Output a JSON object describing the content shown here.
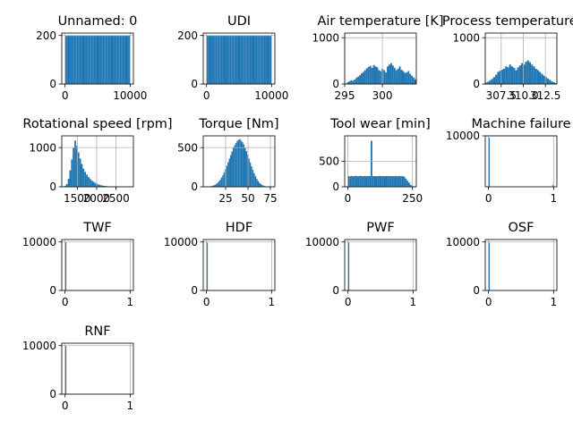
{
  "chart_data": [
    {
      "type": "histogram",
      "title": "Unnamed: 0",
      "distribution": "uniform",
      "bins": 50,
      "xlim": [
        -500,
        10500
      ],
      "ylim": [
        0,
        210
      ],
      "xticks": [
        {
          "v": 0,
          "label": "0"
        },
        {
          "v": 10000,
          "label": "10000"
        }
      ],
      "yticks": [
        {
          "v": 0,
          "label": "0"
        },
        {
          "v": 200,
          "label": "200"
        }
      ],
      "values": [
        200,
        200,
        200,
        200,
        200,
        200,
        200,
        200,
        200,
        200,
        200,
        200,
        200,
        200,
        200,
        200,
        200,
        200,
        200,
        200,
        200,
        200,
        200,
        200,
        200,
        200,
        200,
        200,
        200,
        200,
        200,
        200,
        200,
        200,
        200,
        200,
        200,
        200,
        200,
        200,
        200,
        200,
        200,
        200,
        200,
        200,
        200,
        200,
        200,
        200
      ],
      "range": [
        0,
        10000
      ]
    },
    {
      "type": "histogram",
      "title": "UDI",
      "distribution": "uniform",
      "bins": 50,
      "xlim": [
        -500,
        10500
      ],
      "ylim": [
        0,
        210
      ],
      "xticks": [
        {
          "v": 0,
          "label": "0"
        },
        {
          "v": 10000,
          "label": "10000"
        }
      ],
      "yticks": [
        {
          "v": 0,
          "label": "0"
        },
        {
          "v": 200,
          "label": "200"
        }
      ],
      "values": [
        200,
        200,
        200,
        200,
        200,
        200,
        200,
        200,
        200,
        200,
        200,
        200,
        200,
        200,
        200,
        200,
        200,
        200,
        200,
        200,
        200,
        200,
        200,
        200,
        200,
        200,
        200,
        200,
        200,
        200,
        200,
        200,
        200,
        200,
        200,
        200,
        200,
        200,
        200,
        200,
        200,
        200,
        200,
        200,
        200,
        200,
        200,
        200,
        200,
        200
      ],
      "range": [
        1,
        10000
      ]
    },
    {
      "type": "histogram",
      "title": "Air temperature [K]",
      "distribution": "multimodal",
      "xlim": [
        295,
        304.5
      ],
      "ylim": [
        0,
        1100
      ],
      "xticks": [
        {
          "v": 295,
          "label": "295"
        },
        {
          "v": 300,
          "label": "300"
        }
      ],
      "yticks": [
        {
          "v": 0,
          "label": "0"
        },
        {
          "v": 1000,
          "label": "1000"
        }
      ],
      "values": [
        40,
        60,
        80,
        70,
        100,
        130,
        160,
        190,
        230,
        260,
        300,
        340,
        370,
        390,
        350,
        410,
        380,
        360,
        300,
        280,
        330,
        300,
        250,
        380,
        420,
        450,
        400,
        350,
        300,
        330,
        380,
        310,
        280,
        240,
        250,
        280,
        220,
        180,
        140,
        100
      ],
      "range": [
        295.3,
        304.5
      ]
    },
    {
      "type": "histogram",
      "title": "Process temperature [K]",
      "distribution": "multimodal",
      "xlim": [
        305.7,
        313.8
      ],
      "ylim": [
        0,
        1100
      ],
      "xticks": [
        {
          "v": 307.5,
          "label": "307.5"
        },
        {
          "v": 310,
          "label": "310.0"
        },
        {
          "v": 312.5,
          "label": "312.5"
        }
      ],
      "yticks": [
        {
          "v": 0,
          "label": "0"
        },
        {
          "v": 1000,
          "label": "1000"
        }
      ],
      "values": [
        30,
        50,
        80,
        110,
        150,
        200,
        260,
        290,
        310,
        330,
        380,
        360,
        420,
        380,
        350,
        300,
        360,
        400,
        450,
        420,
        480,
        510,
        470,
        420,
        380,
        330,
        300,
        260,
        220,
        180,
        150,
        120,
        90,
        60,
        40,
        20
      ],
      "range": [
        305.7,
        313.8
      ]
    },
    {
      "type": "histogram",
      "title": "Rotational speed [rpm]",
      "distribution": "right-skewed",
      "xlim": [
        1100,
        2950
      ],
      "ylim": [
        0,
        1300
      ],
      "xticks": [
        {
          "v": 1500,
          "label": "1500"
        },
        {
          "v": 2000,
          "label": "2000"
        },
        {
          "v": 2500,
          "label": "2500"
        }
      ],
      "yticks": [
        {
          "v": 0,
          "label": "0"
        },
        {
          "v": 1000,
          "label": "1000"
        }
      ],
      "values": [
        20,
        70,
        200,
        420,
        700,
        1000,
        1180,
        1050,
        880,
        720,
        580,
        460,
        380,
        310,
        250,
        200,
        160,
        130,
        100,
        80,
        60,
        45,
        35,
        25,
        20,
        15,
        12,
        10,
        8,
        6,
        5,
        4,
        3,
        2,
        2,
        1,
        1,
        1,
        1,
        1
      ],
      "range": [
        1168,
        2886
      ]
    },
    {
      "type": "histogram",
      "title": "Torque [Nm]",
      "distribution": "normal",
      "xlim": [
        0,
        80
      ],
      "ylim": [
        0,
        650
      ],
      "xticks": [
        {
          "v": 25,
          "label": "25"
        },
        {
          "v": 50,
          "label": "50"
        },
        {
          "v": 75,
          "label": "75"
        }
      ],
      "yticks": [
        {
          "v": 0,
          "label": "0"
        },
        {
          "v": 500,
          "label": "500"
        }
      ],
      "values": [
        2,
        3,
        5,
        8,
        12,
        18,
        26,
        38,
        52,
        70,
        92,
        118,
        150,
        185,
        225,
        268,
        312,
        360,
        405,
        450,
        495,
        530,
        560,
        585,
        600,
        610,
        590,
        570,
        540,
        500,
        455,
        410,
        360,
        310,
        260,
        215,
        172,
        135,
        102,
        75,
        52,
        36,
        24,
        15,
        9,
        5,
        3,
        2,
        1,
        1
      ],
      "range": [
        3.8,
        76.6
      ]
    },
    {
      "type": "histogram",
      "title": "Tool wear [min]",
      "distribution": "uniform-with-spike",
      "xlim": [
        -12,
        265
      ],
      "ylim": [
        0,
        1000
      ],
      "xticks": [
        {
          "v": 0,
          "label": "0"
        },
        {
          "v": 250,
          "label": "250"
        }
      ],
      "yticks": [
        {
          "v": 0,
          "label": "0"
        },
        {
          "v": 500,
          "label": "500"
        }
      ],
      "values": [
        210,
        205,
        212,
        208,
        215,
        210,
        206,
        214,
        211,
        209,
        212,
        207,
        213,
        210,
        900,
        208,
        212,
        206,
        211,
        214,
        209,
        212,
        207,
        210,
        213,
        208,
        211,
        210,
        206,
        212,
        209,
        214,
        207,
        211,
        200,
        160,
        120,
        80,
        40,
        15
      ],
      "range": [
        0,
        253
      ]
    },
    {
      "type": "histogram",
      "title": "Machine failure",
      "distribution": "binary",
      "xlim": [
        -0.05,
        1.05
      ],
      "ylim": [
        0,
        10000
      ],
      "xticks": [
        {
          "v": 0,
          "label": "0"
        },
        {
          "v": 1,
          "label": "1"
        }
      ],
      "yticks": [
        {
          "v": 10000,
          "label": "10000"
        }
      ],
      "values": [
        9661,
        0,
        0,
        0,
        0,
        0,
        0,
        0,
        0,
        0,
        0,
        0,
        0,
        0,
        0,
        0,
        0,
        0,
        0,
        0,
        0,
        0,
        0,
        0,
        0,
        0,
        0,
        0,
        0,
        0,
        0,
        0,
        0,
        0,
        0,
        0,
        0,
        0,
        0,
        0,
        0,
        0,
        0,
        0,
        0,
        0,
        0,
        0,
        0,
        339
      ],
      "range": [
        0,
        1
      ]
    },
    {
      "type": "histogram",
      "title": "TWF",
      "distribution": "binary",
      "xlim": [
        -0.05,
        1.05
      ],
      "ylim": [
        0,
        10500
      ],
      "xticks": [
        {
          "v": 0,
          "label": "0"
        },
        {
          "v": 1,
          "label": "1"
        }
      ],
      "yticks": [
        {
          "v": 0,
          "label": "0"
        },
        {
          "v": 10000,
          "label": "10000"
        }
      ],
      "values": [
        9954,
        0,
        0,
        0,
        0,
        0,
        0,
        0,
        0,
        0,
        0,
        0,
        0,
        0,
        0,
        0,
        0,
        0,
        0,
        0,
        0,
        0,
        0,
        0,
        0,
        0,
        0,
        0,
        0,
        0,
        0,
        0,
        0,
        0,
        0,
        0,
        0,
        0,
        0,
        0,
        0,
        0,
        0,
        0,
        0,
        0,
        0,
        0,
        0,
        46
      ],
      "range": [
        0,
        1
      ]
    },
    {
      "type": "histogram",
      "title": "HDF",
      "distribution": "binary",
      "xlim": [
        -0.05,
        1.05
      ],
      "ylim": [
        0,
        10500
      ],
      "xticks": [
        {
          "v": 0,
          "label": "0"
        },
        {
          "v": 1,
          "label": "1"
        }
      ],
      "yticks": [
        {
          "v": 0,
          "label": "0"
        },
        {
          "v": 10000,
          "label": "10000"
        }
      ],
      "values": [
        9885,
        0,
        0,
        0,
        0,
        0,
        0,
        0,
        0,
        0,
        0,
        0,
        0,
        0,
        0,
        0,
        0,
        0,
        0,
        0,
        0,
        0,
        0,
        0,
        0,
        0,
        0,
        0,
        0,
        0,
        0,
        0,
        0,
        0,
        0,
        0,
        0,
        0,
        0,
        0,
        0,
        0,
        0,
        0,
        0,
        0,
        0,
        0,
        0,
        115
      ],
      "range": [
        0,
        1
      ]
    },
    {
      "type": "histogram",
      "title": "PWF",
      "distribution": "binary",
      "xlim": [
        -0.05,
        1.05
      ],
      "ylim": [
        0,
        10500
      ],
      "xticks": [
        {
          "v": 0,
          "label": "0"
        },
        {
          "v": 1,
          "label": "1"
        }
      ],
      "yticks": [
        {
          "v": 0,
          "label": "0"
        },
        {
          "v": 10000,
          "label": "10000"
        }
      ],
      "values": [
        9905,
        0,
        0,
        0,
        0,
        0,
        0,
        0,
        0,
        0,
        0,
        0,
        0,
        0,
        0,
        0,
        0,
        0,
        0,
        0,
        0,
        0,
        0,
        0,
        0,
        0,
        0,
        0,
        0,
        0,
        0,
        0,
        0,
        0,
        0,
        0,
        0,
        0,
        0,
        0,
        0,
        0,
        0,
        0,
        0,
        0,
        0,
        0,
        0,
        95
      ],
      "range": [
        0,
        1
      ]
    },
    {
      "type": "histogram",
      "title": "OSF",
      "distribution": "binary",
      "xlim": [
        -0.05,
        1.05
      ],
      "ylim": [
        0,
        10500
      ],
      "xticks": [
        {
          "v": 0,
          "label": "0"
        },
        {
          "v": 1,
          "label": "1"
        }
      ],
      "yticks": [
        {
          "v": 0,
          "label": "0"
        },
        {
          "v": 10000,
          "label": "10000"
        }
      ],
      "values": [
        9902,
        0,
        0,
        0,
        0,
        0,
        0,
        0,
        0,
        0,
        0,
        0,
        0,
        0,
        0,
        0,
        0,
        0,
        0,
        0,
        0,
        0,
        0,
        0,
        0,
        0,
        0,
        0,
        0,
        0,
        0,
        0,
        0,
        0,
        0,
        0,
        0,
        0,
        0,
        0,
        0,
        0,
        0,
        0,
        0,
        0,
        0,
        0,
        0,
        98
      ],
      "range": [
        0,
        1
      ]
    },
    {
      "type": "histogram",
      "title": "RNF",
      "distribution": "binary",
      "xlim": [
        -0.05,
        1.05
      ],
      "ylim": [
        0,
        10500
      ],
      "xticks": [
        {
          "v": 0,
          "label": "0"
        },
        {
          "v": 1,
          "label": "1"
        }
      ],
      "yticks": [
        {
          "v": 0,
          "label": "0"
        },
        {
          "v": 10000,
          "label": "10000"
        }
      ],
      "values": [
        9981,
        0,
        0,
        0,
        0,
        0,
        0,
        0,
        0,
        0,
        0,
        0,
        0,
        0,
        0,
        0,
        0,
        0,
        0,
        0,
        0,
        0,
        0,
        0,
        0,
        0,
        0,
        0,
        0,
        0,
        0,
        0,
        0,
        0,
        0,
        0,
        0,
        0,
        0,
        0,
        0,
        0,
        0,
        0,
        0,
        0,
        0,
        0,
        0,
        19
      ],
      "range": [
        0,
        1
      ]
    }
  ],
  "style": {
    "bar_color": "#1f77b4",
    "grid_color": "#b0b0b0",
    "grid": true,
    "axis_color": "#000000"
  }
}
